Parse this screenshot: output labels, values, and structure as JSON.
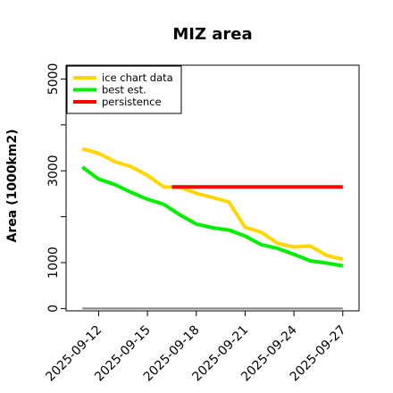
{
  "chart_data": {
    "type": "line",
    "title": "MIZ area",
    "ylabel": "Area (1000km2)",
    "xlabel": "",
    "xlim": [
      "2025-09-10",
      "2025-09-28"
    ],
    "ylim": [
      -50,
      5300
    ],
    "yticks": [
      0,
      1000,
      2000,
      3000,
      4000,
      5000
    ],
    "ytick_labels": [
      "0",
      "1000",
      "",
      "3000",
      "",
      "5000"
    ],
    "xtick_labels": [
      "2025-09-12",
      "2025-09-15",
      "2025-09-18",
      "2025-09-21",
      "2025-09-24",
      "2025-09-27"
    ],
    "grid": false,
    "legend_position": "top-left",
    "series": [
      {
        "name": "ice chart data",
        "color": "#ffd700",
        "x": [
          "2025-09-11",
          "2025-09-12",
          "2025-09-13",
          "2025-09-14",
          "2025-09-15",
          "2025-09-16",
          "2025-09-17",
          "2025-09-18",
          "2025-09-19",
          "2025-09-20",
          "2025-09-21",
          "2025-09-22",
          "2025-09-23",
          "2025-09-24",
          "2025-09-25",
          "2025-09-26",
          "2025-09-27"
        ],
        "y": [
          3480,
          3380,
          3200,
          3090,
          2900,
          2650,
          2640,
          2510,
          2420,
          2320,
          1770,
          1660,
          1420,
          1340,
          1360,
          1160,
          1070
        ]
      },
      {
        "name": "best est.",
        "color": "#00ee00",
        "x": [
          "2025-09-11",
          "2025-09-12",
          "2025-09-13",
          "2025-09-14",
          "2025-09-15",
          "2025-09-16",
          "2025-09-17",
          "2025-09-18",
          "2025-09-19",
          "2025-09-20",
          "2025-09-21",
          "2025-09-22",
          "2025-09-23",
          "2025-09-24",
          "2025-09-25",
          "2025-09-26",
          "2025-09-27"
        ],
        "y": [
          3080,
          2820,
          2700,
          2530,
          2380,
          2270,
          2040,
          1840,
          1760,
          1710,
          1580,
          1390,
          1310,
          1180,
          1040,
          990,
          930
        ]
      },
      {
        "name": "persistence",
        "color": "#ff0000",
        "x": [
          "2025-09-16.5",
          "2025-09-27"
        ],
        "y": [
          2650,
          2650
        ]
      },
      {
        "name": "",
        "color": "#808080",
        "x": [
          "2025-09-11",
          "2025-09-27"
        ],
        "y": [
          0,
          0
        ]
      }
    ]
  }
}
